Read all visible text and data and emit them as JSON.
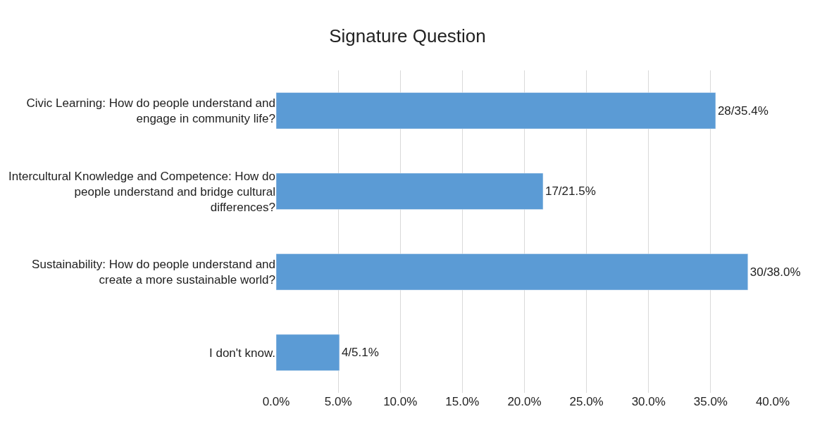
{
  "chart_data": {
    "type": "bar",
    "title": "Signature Question",
    "orientation": "horizontal",
    "categories": [
      "Civic Learning: How do people understand and engage in community life?",
      "Intercultural Knowledge and Competence: How do people understand and bridge cultural differences?",
      "Sustainability: How do people understand and create a more sustainable world?",
      "I don't know."
    ],
    "values": [
      35.4,
      21.5,
      38.0,
      5.1
    ],
    "value_labels": [
      "28/35.4%",
      "17/21.5%",
      "30/38.0%",
      "4/5.1%"
    ],
    "color": "#5b9bd5",
    "xlim": [
      0,
      40
    ],
    "xticks": [
      {
        "value": 0,
        "label": "0.0%"
      },
      {
        "value": 5,
        "label": "5.0%"
      },
      {
        "value": 10,
        "label": "10.0%"
      },
      {
        "value": 15,
        "label": "15.0%"
      },
      {
        "value": 20,
        "label": "20.0%"
      },
      {
        "value": 25,
        "label": "25.0%"
      },
      {
        "value": 30,
        "label": "30.0%"
      },
      {
        "value": 35,
        "label": "35.0%"
      },
      {
        "value": 40,
        "label": "40.0%"
      }
    ],
    "grid": "x"
  }
}
